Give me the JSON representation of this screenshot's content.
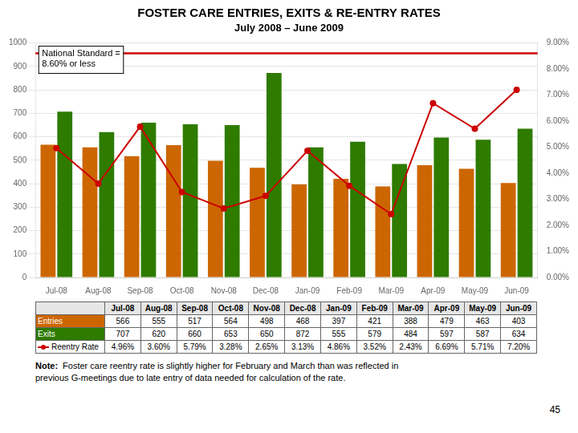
{
  "chart_data": {
    "type": "bar",
    "title": "FOSTER CARE ENTRIES, EXITS & RE-ENTRY RATES",
    "subtitle": "July 2008 – June 2009",
    "categories": [
      "Jul-08",
      "Aug-08",
      "Sep-08",
      "Oct-08",
      "Nov-08",
      "Dec-08",
      "Jan-09",
      "Feb-09",
      "Mar-09",
      "Apr-09",
      "May-09",
      "Jun-09"
    ],
    "series": [
      {
        "name": "Entries",
        "color": "#CC6600",
        "values": [
          566,
          555,
          517,
          564,
          498,
          468,
          397,
          421,
          388,
          479,
          463,
          403
        ]
      },
      {
        "name": "Exits",
        "color": "#2E7B00",
        "values": [
          707,
          620,
          660,
          653,
          650,
          872,
          555,
          579,
          484,
          597,
          587,
          634
        ]
      },
      {
        "name": "Reentry Rate",
        "type": "line",
        "axis": "y2",
        "color": "#CC0000",
        "marker": "circle",
        "values": [
          4.96,
          3.6,
          5.79,
          3.28,
          2.65,
          3.13,
          4.86,
          3.52,
          2.43,
          6.69,
          5.71,
          7.2
        ],
        "value_labels": [
          "4.96%",
          "3.60%",
          "5.79%",
          "3.28%",
          "2.65%",
          "3.13%",
          "4.86%",
          "3.52%",
          "2.43%",
          "6.69%",
          "5.71%",
          "7.20%"
        ]
      }
    ],
    "ylim": [
      0,
      1000
    ],
    "yticks": [
      0,
      100,
      200,
      300,
      400,
      500,
      600,
      700,
      800,
      900,
      1000
    ],
    "y2lim": [
      0,
      9.0
    ],
    "y2ticks": [
      {
        "value": 0.0,
        "label": "0.00%"
      },
      {
        "value": 1.0,
        "label": "1.00%"
      },
      {
        "value": 2.0,
        "label": "2.00%"
      },
      {
        "value": 3.0,
        "label": "3.00%"
      },
      {
        "value": 4.0,
        "label": "4.00%"
      },
      {
        "value": 5.0,
        "label": "5.00%"
      },
      {
        "value": 6.0,
        "label": "6.00%"
      },
      {
        "value": 7.0,
        "label": "7.00%"
      },
      {
        "value": 8.0,
        "label": "8.00%"
      },
      {
        "value": 9.0,
        "label": "9.00%"
      }
    ],
    "grid": true,
    "reference_lines": [
      {
        "value": 8.6,
        "axis": "y2",
        "color": "#CC0000"
      }
    ],
    "annotations": [
      {
        "text": "National Standard =\n8.60% or less"
      }
    ],
    "note": {
      "label": "Note:",
      "lines": [
        "Foster care reentry rate is slightly higher for February and March than was reflected in",
        "previous G-meetings due to late entry of data needed for calculation of the rate."
      ]
    },
    "page_number": "45"
  }
}
